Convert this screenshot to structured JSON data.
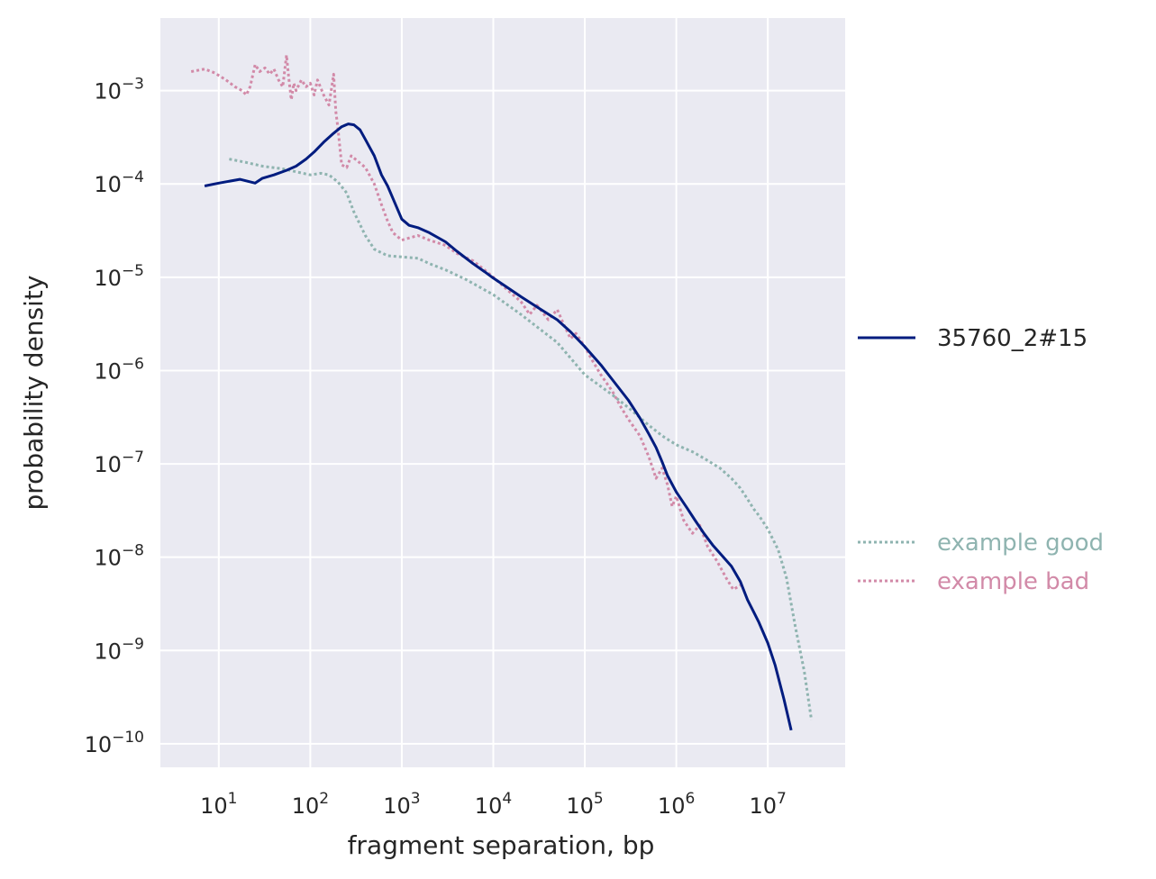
{
  "chart_data": {
    "type": "line",
    "title": "",
    "xlabel": "fragment separation, bp",
    "ylabel": "probability density",
    "xscale": "log",
    "yscale": "log",
    "xlim": [
      2.3,
      70000000
    ],
    "ylim": [
      5.6e-11,
      0.006
    ],
    "grid": true,
    "x_ticks": [
      {
        "value": 10,
        "base": "10",
        "exp": "1"
      },
      {
        "value": 100,
        "base": "10",
        "exp": "2"
      },
      {
        "value": 1000,
        "base": "10",
        "exp": "3"
      },
      {
        "value": 10000,
        "base": "10",
        "exp": "4"
      },
      {
        "value": 100000,
        "base": "10",
        "exp": "5"
      },
      {
        "value": 1000000,
        "base": "10",
        "exp": "6"
      },
      {
        "value": 10000000,
        "base": "10",
        "exp": "7"
      }
    ],
    "y_ticks": [
      {
        "value": 0.001,
        "base": "10",
        "exp": "−3"
      },
      {
        "value": 0.0001,
        "base": "10",
        "exp": "−4"
      },
      {
        "value": 1e-05,
        "base": "10",
        "exp": "−5"
      },
      {
        "value": 1e-06,
        "base": "10",
        "exp": "−6"
      },
      {
        "value": 1e-07,
        "base": "10",
        "exp": "−7"
      },
      {
        "value": 1e-08,
        "base": "10",
        "exp": "−8"
      },
      {
        "value": 1e-09,
        "base": "10",
        "exp": "−9"
      },
      {
        "value": 1e-10,
        "base": "10",
        "exp": "−10"
      }
    ],
    "legend_placement": "right",
    "series": [
      {
        "name": "35760_2#15",
        "style": "solid",
        "color": "#001c7f",
        "x": [
          7,
          10,
          17,
          25,
          30,
          40,
          55,
          70,
          90,
          110,
          140,
          180,
          220,
          260,
          300,
          350,
          400,
          500,
          600,
          700,
          800,
          1000,
          1200,
          1500,
          2000,
          3000,
          4000,
          6000,
          8000,
          10000,
          15000,
          20000,
          30000,
          50000,
          70000,
          100000,
          150000,
          200000,
          300000,
          400000,
          500000,
          600000,
          700000,
          800000,
          1000000,
          1300000,
          1600000,
          2000000,
          2500000,
          3000000,
          4000000,
          5000000,
          6000000,
          7000000,
          8000000,
          10000000,
          12000000,
          15000000,
          18000000
        ],
        "y": [
          9.5e-05,
          0.000102,
          0.000112,
          0.000102,
          0.000115,
          0.000125,
          0.00014,
          0.000155,
          0.000185,
          0.00022,
          0.00028,
          0.00035,
          0.00041,
          0.00044,
          0.00043,
          0.00038,
          0.0003,
          0.0002,
          0.000125,
          9.5e-05,
          7e-05,
          4.2e-05,
          3.6e-05,
          3.4e-05,
          3e-05,
          2.4e-05,
          1.9e-05,
          1.4e-05,
          1.15e-05,
          9.8e-06,
          7.5e-06,
          6.2e-06,
          4.8e-06,
          3.5e-06,
          2.6e-06,
          1.8e-06,
          1.15e-06,
          8e-07,
          4.8e-07,
          3.1e-07,
          2.1e-07,
          1.5e-07,
          1.05e-07,
          7.5e-08,
          5e-08,
          3.4e-08,
          2.5e-08,
          1.8e-08,
          1.35e-08,
          1.1e-08,
          8e-09,
          5.5e-09,
          3.5e-09,
          2.6e-09,
          2e-09,
          1.2e-09,
          7e-10,
          3e-10,
          1.4e-10
        ]
      },
      {
        "name": "example good",
        "style": "dotted",
        "color": "#8fb4b0",
        "x": [
          13,
          20,
          30,
          50,
          70,
          100,
          130,
          160,
          200,
          250,
          300,
          400,
          500,
          700,
          1000,
          1500,
          2000,
          3000,
          5000,
          10000,
          20000,
          50000,
          100000,
          200000,
          300000,
          500000,
          700000,
          1000000,
          1500000,
          2000000,
          3000000,
          4000000,
          5000000,
          6000000,
          7000000,
          8000000,
          10000000,
          13000000,
          16000000,
          20000000,
          25000000,
          30000000
        ],
        "y": [
          0.000185,
          0.00017,
          0.000155,
          0.000145,
          0.000135,
          0.000125,
          0.00013,
          0.000125,
          0.000105,
          8e-05,
          5e-05,
          2.8e-05,
          2e-05,
          1.7e-05,
          1.65e-05,
          1.6e-05,
          1.4e-05,
          1.2e-05,
          9.5e-06,
          6.5e-06,
          4e-06,
          2e-06,
          9e-07,
          5.5e-07,
          4e-07,
          2.6e-07,
          2e-07,
          1.6e-07,
          1.35e-07,
          1.15e-07,
          9e-08,
          7e-08,
          5.5e-08,
          4.2e-08,
          3.3e-08,
          2.8e-08,
          2e-08,
          1.2e-08,
          6e-09,
          1.8e-09,
          6e-10,
          1.8e-10
        ]
      },
      {
        "name": "example bad",
        "style": "dotted",
        "color": "#d28aa8",
        "x": [
          5,
          7,
          9,
          12,
          15,
          18,
          20,
          22,
          25,
          28,
          32,
          36,
          40,
          45,
          50,
          55,
          58,
          62,
          66,
          70,
          80,
          90,
          100,
          110,
          120,
          140,
          160,
          180,
          190,
          200,
          220,
          250,
          280,
          320,
          400,
          500,
          600,
          700,
          800,
          1000,
          1500,
          2000,
          3000,
          4000,
          6000,
          8000,
          10000,
          15000,
          20000,
          25000,
          30000,
          40000,
          50000,
          60000,
          70000,
          80000,
          100000,
          120000,
          150000,
          200000,
          250000,
          300000,
          400000,
          500000,
          600000,
          700000,
          800000,
          900000,
          1000000,
          1200000,
          1500000,
          1800000,
          2200000,
          2800000,
          3500000,
          4200000,
          5000000
        ],
        "y": [
          0.0016,
          0.0017,
          0.00155,
          0.0013,
          0.0011,
          0.001,
          0.0009,
          0.0011,
          0.0019,
          0.0016,
          0.00175,
          0.0015,
          0.0017,
          0.0013,
          0.0011,
          0.0024,
          0.0014,
          0.0008,
          0.0012,
          0.001,
          0.0013,
          0.0011,
          0.0012,
          0.0009,
          0.0013,
          0.0009,
          0.0007,
          0.0015,
          0.0006,
          0.0004,
          0.00016,
          0.00015,
          0.0002,
          0.00018,
          0.00015,
          0.0001,
          6e-05,
          4e-05,
          3e-05,
          2.5e-05,
          2.8e-05,
          2.5e-05,
          2.2e-05,
          1.8e-05,
          1.5e-05,
          1.2e-05,
          1e-05,
          7e-06,
          5.5e-06,
          4e-06,
          5e-06,
          3.5e-06,
          4.5e-06,
          3e-06,
          2.2e-06,
          2.5e-06,
          1.8e-06,
          1.3e-06,
          9e-07,
          6e-07,
          4e-07,
          3e-07,
          2e-07,
          1.2e-07,
          7e-08,
          9e-08,
          6e-08,
          3.5e-08,
          4.5e-08,
          2.5e-08,
          1.8e-08,
          2.2e-08,
          1.3e-08,
          9e-09,
          6e-09,
          4.5e-09,
          5e-09
        ]
      }
    ]
  }
}
